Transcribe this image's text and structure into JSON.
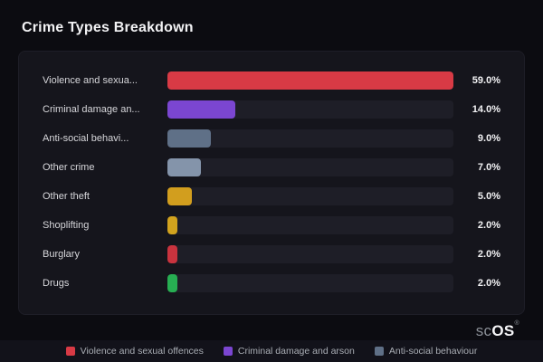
{
  "title": "Crime Types Breakdown",
  "chart_data": {
    "type": "bar",
    "orientation": "horizontal",
    "title": "Crime Types Breakdown",
    "categories": [
      "Violence and sexua...",
      "Criminal damage an...",
      "Anti-social behavi...",
      "Other crime",
      "Other theft",
      "Shoplifting",
      "Burglary",
      "Drugs"
    ],
    "values": [
      59.0,
      14.0,
      9.0,
      7.0,
      5.0,
      2.0,
      2.0,
      2.0
    ],
    "value_labels": [
      "59.0%",
      "14.0%",
      "9.0%",
      "7.0%",
      "5.0%",
      "2.0%",
      "2.0%",
      "2.0%"
    ],
    "bar_colors": [
      "#d83a45",
      "#7b46d1",
      "#5f7087",
      "#8494aa",
      "#d29e1e",
      "#d2a31e",
      "#c9333e",
      "#27ae52"
    ],
    "xlim": [
      0,
      59
    ],
    "grid": false,
    "legend_position": "bottom"
  },
  "legend": [
    {
      "label": "Violence and sexual offences",
      "color": "#d83a45"
    },
    {
      "label": "Criminal damage and arson",
      "color": "#7b46d1"
    },
    {
      "label": "Anti-social behaviour",
      "color": "#5f7087"
    }
  ],
  "logo": {
    "prefix": "sc",
    "suffix": "OS",
    "reg": "®"
  },
  "colors": {
    "background": "#0c0c11",
    "card": "#15151c",
    "track": "#1e1e27"
  }
}
